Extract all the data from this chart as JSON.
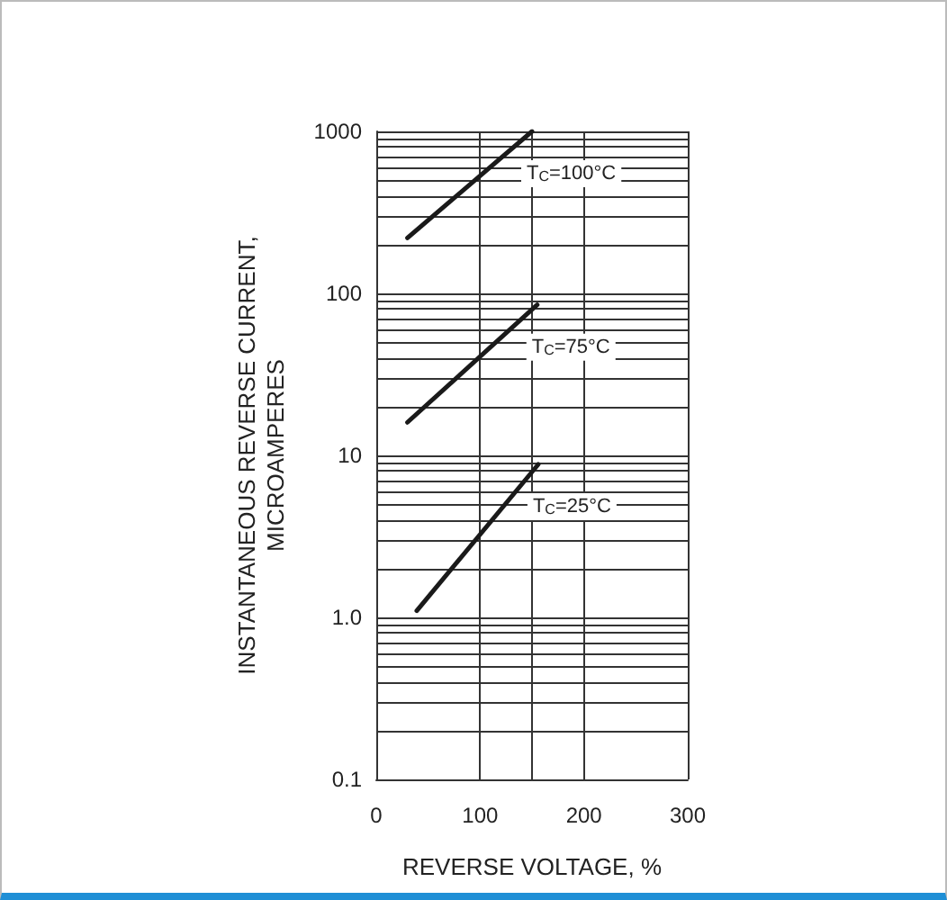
{
  "chart_data": {
    "type": "line",
    "xlabel": "REVERSE VOLTAGE, %",
    "ylabel": "INSTANTANEOUS REVERSE CURRENT,\nMICROAMPERES",
    "log": "y",
    "grid": true,
    "marker": "none",
    "line_style": "solid",
    "xlim": [
      0,
      300
    ],
    "xticks": [
      0,
      100,
      {
        "value": 150,
        "label": null
      },
      200,
      300
    ],
    "ylim": [
      0.1,
      1000
    ],
    "yticks": [
      0.1,
      {
        "value": 0.2,
        "label": null
      },
      {
        "value": 0.3,
        "label": null
      },
      {
        "value": 0.4,
        "label": null
      },
      {
        "value": 0.5,
        "label": null
      },
      {
        "value": 0.6,
        "label": null
      },
      {
        "value": 0.7,
        "label": null
      },
      {
        "value": 0.8,
        "label": null
      },
      {
        "value": 0.9,
        "label": null
      },
      {
        "value": 1,
        "label": "1.0"
      },
      {
        "value": 2,
        "label": null
      },
      {
        "value": 3,
        "label": null
      },
      {
        "value": 4,
        "label": null
      },
      {
        "value": 5,
        "label": null
      },
      {
        "value": 6,
        "label": null
      },
      {
        "value": 7,
        "label": null
      },
      {
        "value": 8,
        "label": null
      },
      {
        "value": 9,
        "label": null
      },
      10,
      {
        "value": 20,
        "label": null
      },
      {
        "value": 30,
        "label": null
      },
      {
        "value": 40,
        "label": null
      },
      {
        "value": 50,
        "label": null
      },
      {
        "value": 60,
        "label": null
      },
      {
        "value": 70,
        "label": null
      },
      {
        "value": 80,
        "label": null
      },
      {
        "value": 90,
        "label": null
      },
      100,
      {
        "value": 200,
        "label": null
      },
      {
        "value": 300,
        "label": null
      },
      {
        "value": 400,
        "label": null
      },
      {
        "value": 500,
        "label": null
      },
      {
        "value": 600,
        "label": null
      },
      {
        "value": 700,
        "label": null
      },
      {
        "value": 800,
        "label": null
      },
      {
        "value": 900,
        "label": null
      },
      1000
    ],
    "series": [
      {
        "color": "#1a1a1a",
        "x": [
          30,
          150
        ],
        "values": [
          220,
          1000
        ]
      },
      {
        "color": "#1a1a1a",
        "x": [
          30,
          155
        ],
        "values": [
          16,
          85
        ]
      },
      {
        "color": "#1a1a1a",
        "x": [
          39,
          156
        ],
        "values": [
          1.1,
          8.8
        ]
      }
    ],
    "annotations": [
      "T$_{C}$=100°C",
      "T$_{C}$=75°C",
      "T$_{C}$=25°C"
    ]
  }
}
